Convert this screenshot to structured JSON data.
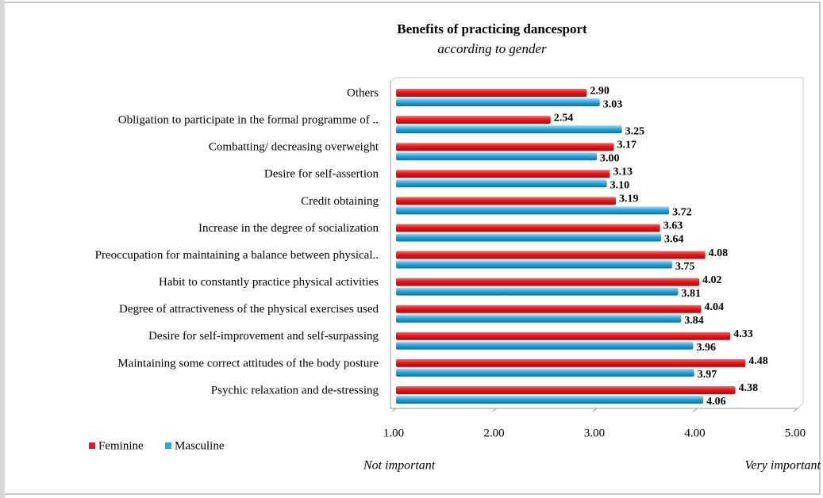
{
  "chart_data": {
    "type": "bar",
    "orientation": "horizontal",
    "title": "Benefits of practicing dancesport",
    "subtitle": "according to gender",
    "categories": [
      "Others",
      "Obligation to participate in the formal programme of ..",
      "Combatting/ decreasing overweight",
      "Desire for self-assertion",
      "Credit obtaining",
      "Increase in the degree of socialization",
      "Preoccupation for maintaining a balance between physical..",
      "Habit to constantly practice physical activities",
      "Degree of attractiveness of the physical exercises used",
      "Desire for self-improvement and self-surpassing",
      "Maintaining some correct attitudes of the body posture",
      "Psychic relaxation and de-stressing"
    ],
    "series": [
      {
        "name": "Feminine",
        "color": "#e8161b",
        "values": [
          2.9,
          2.54,
          3.17,
          3.13,
          3.19,
          3.63,
          4.08,
          4.02,
          4.04,
          4.33,
          4.48,
          4.38
        ],
        "value_labels": [
          "2.90",
          "2.54",
          "3.17",
          "3.13",
          "3.19",
          "3.63",
          "4.08",
          "4.02",
          "4.04",
          "4.33",
          "4.48",
          "4.38"
        ]
      },
      {
        "name": "Masculine",
        "color": "#2aa7df",
        "values": [
          3.03,
          3.25,
          3.0,
          3.1,
          3.72,
          3.64,
          3.75,
          3.81,
          3.84,
          3.96,
          3.97,
          4.06
        ],
        "value_labels": [
          "3.03",
          "3.25",
          "3.00",
          "3.10",
          "3.72",
          "3.64",
          "3.75",
          "3.81",
          "3.84",
          "3.96",
          "3.97",
          "4.06"
        ]
      }
    ],
    "xlim": [
      1,
      5
    ],
    "xticks": [
      {
        "value": 1,
        "label": "1.00"
      },
      {
        "value": 2,
        "label": "2.00"
      },
      {
        "value": 3,
        "label": "3.00"
      },
      {
        "value": 4,
        "label": "4.00"
      },
      {
        "value": 5,
        "label": "5.00"
      }
    ],
    "annotations": [
      "Not important",
      "Very important"
    ],
    "legend": "bottom-left",
    "grid": false
  }
}
